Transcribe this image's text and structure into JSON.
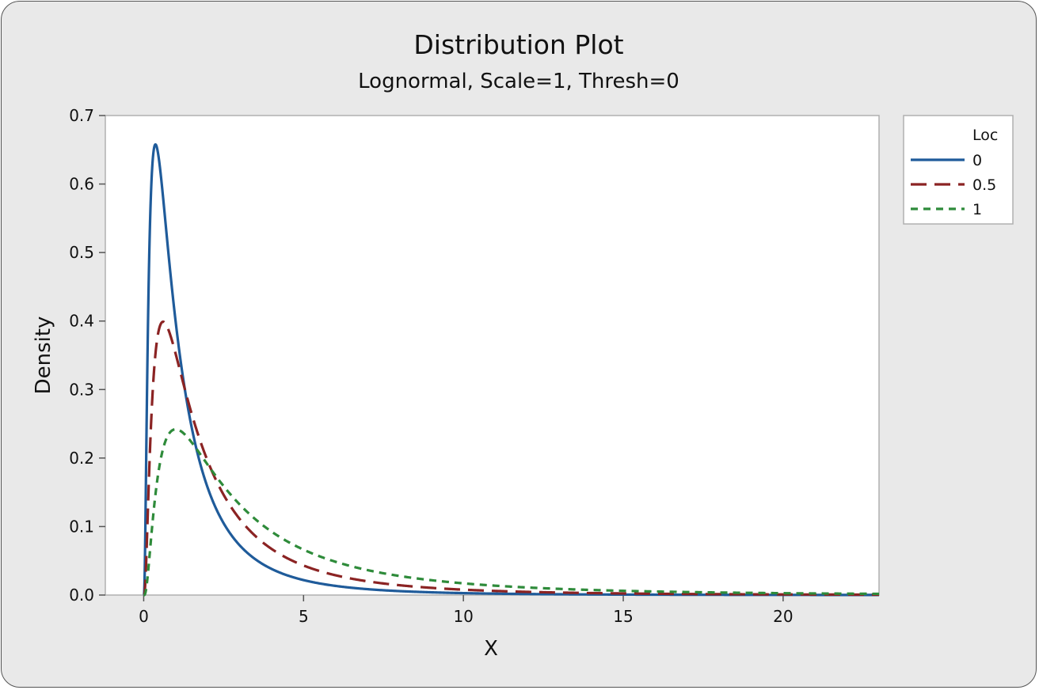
{
  "chart_data": {
    "type": "line",
    "title": "Distribution Plot",
    "subtitle": "Lognormal, Scale=1, Thresh=0",
    "xlabel": "X",
    "ylabel": "Density",
    "xlim": [
      -1.2,
      23
    ],
    "ylim": [
      0,
      0.7
    ],
    "xticks": [
      "0",
      "5",
      "10",
      "15",
      "20"
    ],
    "yticks": [
      "0.0",
      "0.1",
      "0.2",
      "0.3",
      "0.4",
      "0.5",
      "0.6",
      "0.7"
    ],
    "grid": false,
    "legend": {
      "title": "Loc",
      "placement": "right-top"
    },
    "series": [
      {
        "name": "0",
        "loc": 0,
        "scale": 1,
        "color": "#1f5b9a",
        "dash": "solid"
      },
      {
        "name": "0.5",
        "loc": 0.5,
        "scale": 1,
        "color": "#8b2323",
        "dash": "dashed"
      },
      {
        "name": "1",
        "loc": 1,
        "scale": 1,
        "color": "#2e8b3a",
        "dash": "dotted"
      }
    ]
  }
}
